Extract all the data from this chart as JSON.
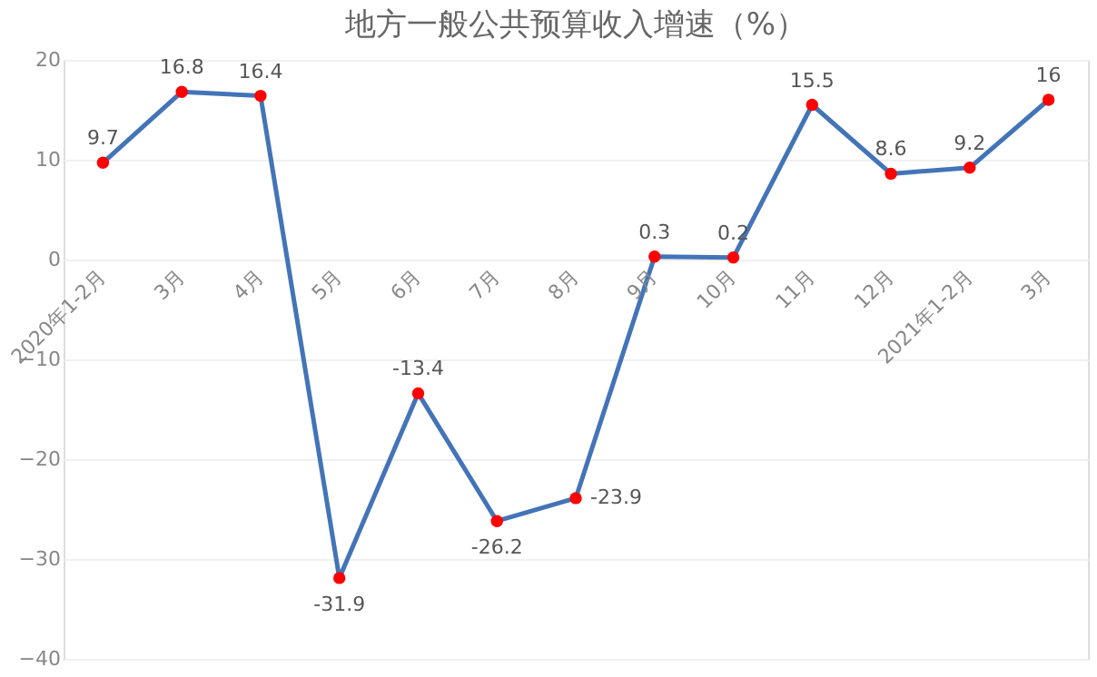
{
  "chart_data": {
    "type": "line",
    "title": "地方一般公共预算收入增速（%）",
    "categories": [
      "2020年1-2月",
      "3月",
      "4月",
      "5月",
      "6月",
      "7月",
      "8月",
      "9月",
      "10月",
      "11月",
      "12月",
      "2021年1-2月",
      "3月"
    ],
    "series": [
      {
        "color": "#4374b8",
        "values": [
          9.7,
          16.8,
          16.4,
          -31.9,
          -13.4,
          -26.2,
          -23.9,
          0.3,
          0.2,
          15.5,
          8.6,
          9.2,
          16
        ]
      }
    ],
    "ylim": [
      -40,
      20
    ],
    "yticks": [
      -40,
      -30,
      -20,
      -10,
      0,
      10,
      20
    ],
    "grid": "y",
    "marker": "circle",
    "data_labels": true
  }
}
